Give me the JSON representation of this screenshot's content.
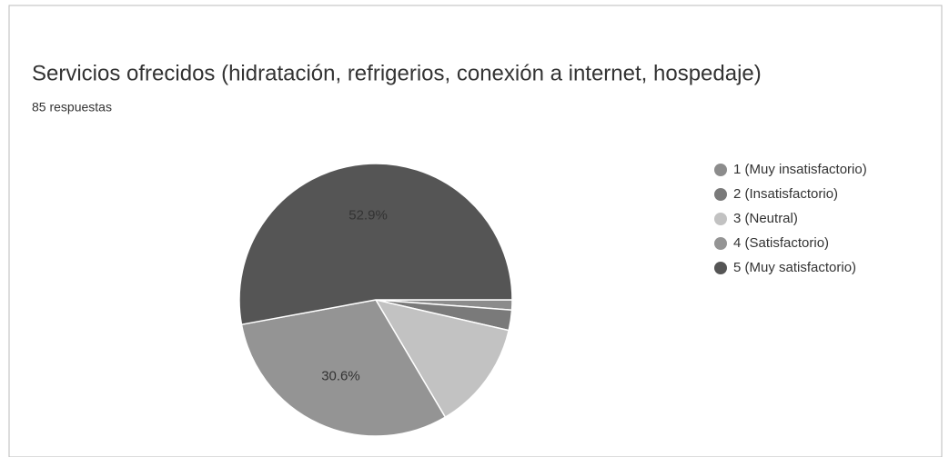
{
  "chart_data": {
    "type": "pie",
    "title": "Servicios ofrecidos (hidratación, refrigerios, conexión a internet, hospedaje)",
    "subtitle": "85 respuestas",
    "categories": [
      "1 (Muy insatisfactorio)",
      "2 (Insatisfactorio)",
      "3 (Neutral)",
      "4 (Satisfactorio)",
      "5 (Muy satisfactorio)"
    ],
    "values": [
      1.2,
      2.4,
      12.9,
      30.6,
      52.9
    ],
    "value_labels": [
      null,
      null,
      null,
      "30.6%",
      "52.9%"
    ],
    "colors": [
      "#8c8c8c",
      "#7a7a7a",
      "#c2c2c2",
      "#949494",
      "#555555"
    ],
    "legend": "right"
  }
}
